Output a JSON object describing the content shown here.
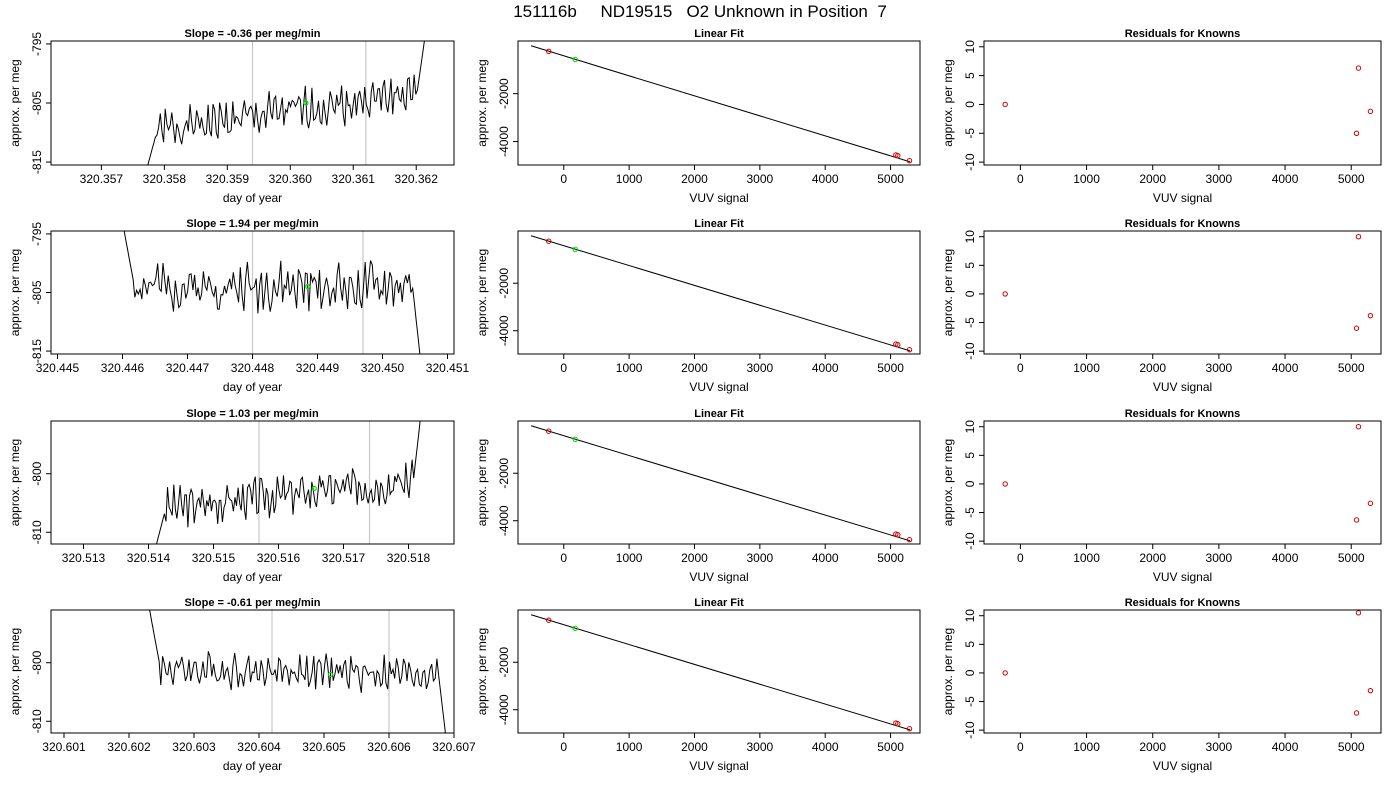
{
  "main_title": "151116b     ND19515   O2 Unknown in Position  7",
  "chart_data": [
    {
      "type": "line",
      "row": 1,
      "col": 1,
      "title": "Slope =  -0.36  per meg/min",
      "xlabel": "day of year",
      "ylabel": "approx. per meg",
      "xlim": [
        320.3562,
        320.3626
      ],
      "ylim": [
        -815.5,
        -794.5
      ],
      "xticks": [
        320.357,
        320.358,
        320.359,
        320.36,
        320.361,
        320.362
      ],
      "xtick_labels": [
        "320.357",
        "320.358",
        "320.359",
        "320.360",
        "320.361",
        "320.362"
      ],
      "yticks": [
        -815,
        -805,
        -795
      ],
      "ytick_labels": [
        "-815",
        "-805",
        "-795"
      ],
      "vlines": [
        320.3594,
        320.3612
      ],
      "series": [
        {
          "color": "#000000",
          "x_start": 320.3577,
          "x_end": 320.36215,
          "y_start": -817,
          "base_start": -810,
          "base_end": -803,
          "y_end": -793,
          "amplitude": 2.5,
          "seed": 1
        }
      ],
      "marker": {
        "x": 320.36025,
        "y": -805,
        "color": "#00e000"
      }
    },
    {
      "type": "scatter",
      "row": 1,
      "col": 2,
      "title": "Linear Fit",
      "xlabel": "VUV signal",
      "ylabel": "approx. per meg",
      "xlim": [
        -700,
        5450
      ],
      "ylim": [
        -4980,
        200
      ],
      "xticks": [
        0,
        1000,
        2000,
        3000,
        4000,
        5000
      ],
      "xtick_labels": [
        "0",
        "1000",
        "2000",
        "3000",
        "4000",
        "5000"
      ],
      "yticks": [
        -4000,
        -2000
      ],
      "ytick_labels": [
        "-4000",
        "-2000"
      ],
      "fit_line": {
        "x": [
          -500,
          5300
        ],
        "y": [
          0,
          -4850
        ]
      },
      "points": [
        {
          "x": -230,
          "y": -230,
          "color": "#d00000"
        },
        {
          "x": 5080,
          "y": -4560,
          "color": "#d00000"
        },
        {
          "x": 5110,
          "y": -4590,
          "color": "#d00000"
        },
        {
          "x": 5290,
          "y": -4800,
          "color": "#d00000"
        },
        {
          "x": 175,
          "y": -570,
          "color": "#00e000"
        }
      ]
    },
    {
      "type": "scatter",
      "row": 1,
      "col": 3,
      "title": "Residuals for Knowns",
      "xlabel": "VUV signal",
      "ylabel": "approx. per meg",
      "xlim": [
        -550,
        5450
      ],
      "ylim": [
        -10.5,
        11
      ],
      "xticks": [
        0,
        1000,
        2000,
        3000,
        4000,
        5000
      ],
      "xtick_labels": [
        "0",
        "1000",
        "2000",
        "3000",
        "4000",
        "5000"
      ],
      "yticks": [
        -10,
        -5,
        0,
        5,
        10
      ],
      "ytick_labels": [
        "-10",
        "-5",
        "0",
        "5",
        "10"
      ],
      "points": [
        {
          "x": -230,
          "y": 0,
          "color": "#d00000"
        },
        {
          "x": 5080,
          "y": -5,
          "color": "#d00000"
        },
        {
          "x": 5110,
          "y": 6.3,
          "color": "#d00000"
        },
        {
          "x": 5290,
          "y": -1.2,
          "color": "#d00000"
        }
      ]
    },
    {
      "type": "line",
      "row": 2,
      "col": 1,
      "title": "Slope =  1.94  per meg/min",
      "xlabel": "day of year",
      "ylabel": "approx. per meg",
      "xlim": [
        320.4449,
        320.4511
      ],
      "ylim": [
        -815.5,
        -794.5
      ],
      "xticks": [
        320.445,
        320.446,
        320.447,
        320.448,
        320.449,
        320.45,
        320.451
      ],
      "xtick_labels": [
        "320.445",
        "320.446",
        "320.447",
        "320.448",
        "320.449",
        "320.450",
        "320.451"
      ],
      "yticks": [
        -815,
        -805,
        -795
      ],
      "ytick_labels": [
        "-815",
        "-805",
        "-795"
      ],
      "vlines": [
        320.448,
        320.4497
      ],
      "series": [
        {
          "color": "#000000",
          "x_start": 320.446,
          "x_end": 320.4506,
          "y_start": -793,
          "base_start": -804,
          "base_end": -804,
          "y_end": -818,
          "amplitude": 3,
          "seed": 2
        }
      ],
      "marker": {
        "x": 320.44885,
        "y": -804,
        "color": "#00e000"
      }
    },
    {
      "type": "scatter",
      "row": 2,
      "col": 2,
      "title": "Linear Fit",
      "xlabel": "VUV signal",
      "ylabel": "approx. per meg",
      "xlim": [
        -700,
        5450
      ],
      "ylim": [
        -4980,
        200
      ],
      "xticks": [
        0,
        1000,
        2000,
        3000,
        4000,
        5000
      ],
      "xtick_labels": [
        "0",
        "1000",
        "2000",
        "3000",
        "4000",
        "5000"
      ],
      "yticks": [
        -4000,
        -2000
      ],
      "ytick_labels": [
        "-4000",
        "-2000"
      ],
      "fit_line": {
        "x": [
          -500,
          5300
        ],
        "y": [
          0,
          -4850
        ]
      },
      "points": [
        {
          "x": -230,
          "y": -230,
          "color": "#d00000"
        },
        {
          "x": 5080,
          "y": -4560,
          "color": "#d00000"
        },
        {
          "x": 5110,
          "y": -4590,
          "color": "#d00000"
        },
        {
          "x": 5290,
          "y": -4800,
          "color": "#d00000"
        },
        {
          "x": 175,
          "y": -570,
          "color": "#00e000"
        }
      ]
    },
    {
      "type": "scatter",
      "row": 2,
      "col": 3,
      "title": "Residuals for Knowns",
      "xlabel": "VUV signal",
      "ylabel": "approx. per meg",
      "xlim": [
        -550,
        5450
      ],
      "ylim": [
        -10.5,
        11
      ],
      "xticks": [
        0,
        1000,
        2000,
        3000,
        4000,
        5000
      ],
      "xtick_labels": [
        "0",
        "1000",
        "2000",
        "3000",
        "4000",
        "5000"
      ],
      "yticks": [
        -10,
        -5,
        0,
        5,
        10
      ],
      "ytick_labels": [
        "-10",
        "-5",
        "0",
        "5",
        "10"
      ],
      "points": [
        {
          "x": -230,
          "y": 0,
          "color": "#d00000"
        },
        {
          "x": 5080,
          "y": -6,
          "color": "#d00000"
        },
        {
          "x": 5110,
          "y": 10,
          "color": "#d00000"
        },
        {
          "x": 5290,
          "y": -3.8,
          "color": "#d00000"
        }
      ]
    },
    {
      "type": "line",
      "row": 3,
      "col": 1,
      "title": "Slope =  1.03  per meg/min",
      "xlabel": "day of year",
      "ylabel": "approx. per meg",
      "xlim": [
        320.5125,
        320.5187
      ],
      "ylim": [
        -812,
        -791
      ],
      "xticks": [
        320.513,
        320.514,
        320.515,
        320.516,
        320.517,
        320.518
      ],
      "xtick_labels": [
        "320.513",
        "320.514",
        "320.515",
        "320.516",
        "320.517",
        "320.518"
      ],
      "yticks": [
        -810,
        -800
      ],
      "ytick_labels": [
        "-810",
        "-800"
      ],
      "vlines": [
        320.5157,
        320.5174
      ],
      "series": [
        {
          "color": "#000000",
          "x_start": 320.5141,
          "x_end": 320.5182,
          "y_start": -813,
          "base_start": -806,
          "base_end": -801,
          "y_end": -789,
          "amplitude": 2.5,
          "seed": 3
        }
      ],
      "marker": {
        "x": 320.51655,
        "y": -802.5,
        "color": "#00e000"
      }
    },
    {
      "type": "scatter",
      "row": 3,
      "col": 2,
      "title": "Linear Fit",
      "xlabel": "VUV signal",
      "ylabel": "approx. per meg",
      "xlim": [
        -700,
        5450
      ],
      "ylim": [
        -4980,
        200
      ],
      "xticks": [
        0,
        1000,
        2000,
        3000,
        4000,
        5000
      ],
      "xtick_labels": [
        "0",
        "1000",
        "2000",
        "3000",
        "4000",
        "5000"
      ],
      "yticks": [
        -4000,
        -2000
      ],
      "ytick_labels": [
        "-4000",
        "-2000"
      ],
      "fit_line": {
        "x": [
          -500,
          5300
        ],
        "y": [
          0,
          -4850
        ]
      },
      "points": [
        {
          "x": -230,
          "y": -230,
          "color": "#d00000"
        },
        {
          "x": 5080,
          "y": -4560,
          "color": "#d00000"
        },
        {
          "x": 5110,
          "y": -4590,
          "color": "#d00000"
        },
        {
          "x": 5290,
          "y": -4800,
          "color": "#d00000"
        },
        {
          "x": 175,
          "y": -570,
          "color": "#00e000"
        }
      ]
    },
    {
      "type": "scatter",
      "row": 3,
      "col": 3,
      "title": "Residuals for Knowns",
      "xlabel": "VUV signal",
      "ylabel": "approx. per meg",
      "xlim": [
        -550,
        5450
      ],
      "ylim": [
        -10.5,
        11
      ],
      "xticks": [
        0,
        1000,
        2000,
        3000,
        4000,
        5000
      ],
      "xtick_labels": [
        "0",
        "1000",
        "2000",
        "3000",
        "4000",
        "5000"
      ],
      "yticks": [
        -10,
        -5,
        0,
        5,
        10
      ],
      "ytick_labels": [
        "-10",
        "-5",
        "0",
        "5",
        "10"
      ],
      "points": [
        {
          "x": -230,
          "y": 0,
          "color": "#d00000"
        },
        {
          "x": 5080,
          "y": -6.3,
          "color": "#d00000"
        },
        {
          "x": 5110,
          "y": 10,
          "color": "#d00000"
        },
        {
          "x": 5290,
          "y": -3.4,
          "color": "#d00000"
        }
      ]
    },
    {
      "type": "line",
      "row": 4,
      "col": 1,
      "title": "Slope =  -0.61  per meg/min",
      "xlabel": "day of year",
      "ylabel": "approx. per meg",
      "xlim": [
        320.6008,
        320.607
      ],
      "ylim": [
        -812,
        -791
      ],
      "xticks": [
        320.601,
        320.602,
        320.603,
        320.604,
        320.605,
        320.606,
        320.607
      ],
      "xtick_labels": [
        "320.601",
        "320.602",
        "320.603",
        "320.604",
        "320.605",
        "320.606",
        "320.607"
      ],
      "yticks": [
        -810,
        -800
      ],
      "ytick_labels": [
        "-810",
        "-800"
      ],
      "vlines": [
        320.6042,
        320.606
      ],
      "series": [
        {
          "color": "#000000",
          "x_start": 320.6023,
          "x_end": 320.6069,
          "y_start": -790,
          "base_start": -801,
          "base_end": -802,
          "y_end": -815,
          "amplitude": 2.2,
          "seed": 4
        }
      ],
      "marker": {
        "x": 320.6051,
        "y": -802,
        "color": "#00e000"
      }
    },
    {
      "type": "scatter",
      "row": 4,
      "col": 2,
      "title": "Linear Fit",
      "xlabel": "VUV signal",
      "ylabel": "approx. per meg",
      "xlim": [
        -700,
        5450
      ],
      "ylim": [
        -4980,
        200
      ],
      "xticks": [
        0,
        1000,
        2000,
        3000,
        4000,
        5000
      ],
      "xtick_labels": [
        "0",
        "1000",
        "2000",
        "3000",
        "4000",
        "5000"
      ],
      "yticks": [
        -4000,
        -2000
      ],
      "ytick_labels": [
        "-4000",
        "-2000"
      ],
      "fit_line": {
        "x": [
          -500,
          5300
        ],
        "y": [
          0,
          -4850
        ]
      },
      "points": [
        {
          "x": -230,
          "y": -230,
          "color": "#d00000"
        },
        {
          "x": 5080,
          "y": -4560,
          "color": "#d00000"
        },
        {
          "x": 5110,
          "y": -4590,
          "color": "#d00000"
        },
        {
          "x": 5290,
          "y": -4800,
          "color": "#d00000"
        },
        {
          "x": 175,
          "y": -570,
          "color": "#00e000"
        }
      ]
    },
    {
      "type": "scatter",
      "row": 4,
      "col": 3,
      "title": "Residuals for Knowns",
      "xlabel": "VUV signal",
      "ylabel": "approx. per meg",
      "xlim": [
        -550,
        5450
      ],
      "ylim": [
        -10.5,
        11
      ],
      "xticks": [
        0,
        1000,
        2000,
        3000,
        4000,
        5000
      ],
      "xtick_labels": [
        "0",
        "1000",
        "2000",
        "3000",
        "4000",
        "5000"
      ],
      "yticks": [
        -10,
        -5,
        0,
        5,
        10
      ],
      "ytick_labels": [
        "-10",
        "-5",
        "0",
        "5",
        "10"
      ],
      "points": [
        {
          "x": -230,
          "y": 0,
          "color": "#d00000"
        },
        {
          "x": 5080,
          "y": -7,
          "color": "#d00000"
        },
        {
          "x": 5110,
          "y": 10.5,
          "color": "#d00000"
        },
        {
          "x": 5290,
          "y": -3.1,
          "color": "#d00000"
        }
      ]
    }
  ]
}
